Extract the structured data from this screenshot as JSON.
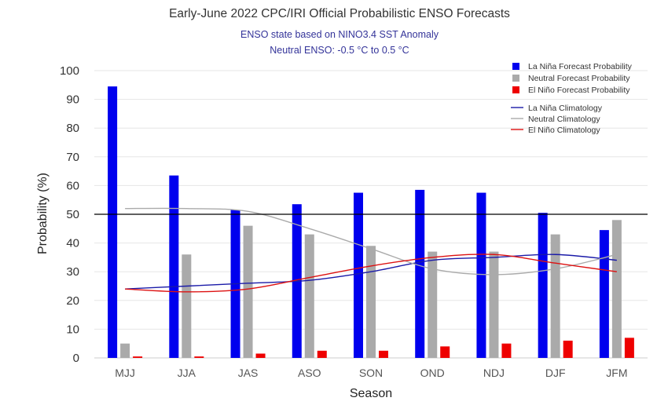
{
  "chart_data": {
    "type": "bar",
    "title": "Early-June 2022 CPC/IRI Official Probabilistic ENSO Forecasts",
    "subtitle_lines": [
      "ENSO state based on NINO3.4 SST Anomaly",
      "Neutral ENSO: -0.5 °C to 0.5 °C"
    ],
    "xlabel": "Season",
    "ylabel": "Probability (%)",
    "ylim": [
      0,
      100
    ],
    "yticks": [
      0,
      10,
      20,
      30,
      40,
      50,
      60,
      70,
      80,
      90,
      100
    ],
    "grid": true,
    "reference_line": 50,
    "legend_position": "top-right",
    "categories": [
      "MJJ",
      "JJA",
      "JAS",
      "ASO",
      "SON",
      "OND",
      "NDJ",
      "DJF",
      "JFM"
    ],
    "series": [
      {
        "name": "La Niña Forecast Probability",
        "color": "#0000ee",
        "values": [
          94.5,
          63.5,
          51.5,
          53.5,
          57.5,
          58.5,
          57.5,
          50.5,
          44.5
        ]
      },
      {
        "name": "Neutral Forecast Probability",
        "color": "#aaaaaa",
        "values": [
          5,
          36,
          46,
          43,
          39,
          37,
          37,
          43,
          48
        ]
      },
      {
        "name": "El Niño Forecast Probability",
        "color": "#ee0000",
        "values": [
          0.5,
          0.5,
          1.5,
          2.5,
          2.5,
          4,
          5,
          6,
          7
        ]
      }
    ],
    "climatology": [
      {
        "name": "La Niña Climatology",
        "color": "#1a1aa8",
        "values": [
          24,
          25,
          26,
          27,
          30,
          34,
          35,
          36,
          34
        ]
      },
      {
        "name": "Neutral Climatology",
        "color": "#aaaaaa",
        "values": [
          52,
          52,
          51,
          45,
          38,
          31,
          29,
          31,
          36
        ]
      },
      {
        "name": "El Niño Climatology",
        "color": "#dd1111",
        "values": [
          24,
          23,
          24,
          28,
          32,
          35,
          36,
          33,
          30
        ]
      }
    ]
  }
}
